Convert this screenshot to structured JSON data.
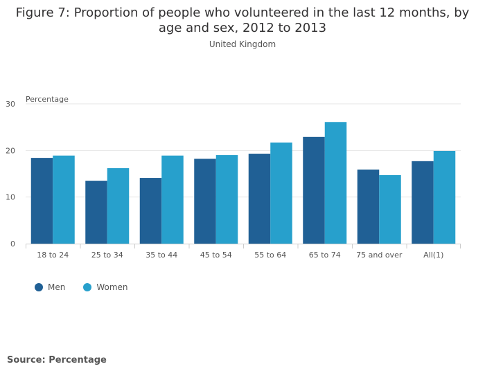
{
  "title_lines": [
    "Figure 7: Proportion of people who volunteered in the last 12 months, by",
    "age and sex, 2012 to 2013"
  ],
  "subtitle": "United Kingdom",
  "source": "Source: Percentage",
  "colors": {
    "men": "#206095",
    "women": "#27a0cc",
    "grid": "#e6e6e6",
    "axis": "#cccccc"
  },
  "chart_data": {
    "type": "bar",
    "title": "Figure 7: Proportion of people who volunteered in the last 12 months, by age and sex, 2012 to 2013",
    "subtitle": "United Kingdom",
    "xlabel": "",
    "ylabel": "Percentage",
    "ylim": [
      0,
      30
    ],
    "yticks": [
      "0",
      "10",
      "20",
      "30"
    ],
    "categories": [
      "18 to 24",
      "25 to 34",
      "35 to 44",
      "45 to 54",
      "55 to 64",
      "65 to 74",
      "75 and over",
      "All(1)"
    ],
    "series": [
      {
        "name": "Men",
        "values": [
          18.4,
          13.5,
          14.1,
          18.2,
          19.3,
          22.9,
          15.9,
          17.7
        ]
      },
      {
        "name": "Women",
        "values": [
          18.9,
          16.2,
          18.9,
          19.0,
          21.7,
          26.1,
          14.7,
          19.9
        ]
      }
    ],
    "legend": "bottom-left",
    "grid": true
  }
}
